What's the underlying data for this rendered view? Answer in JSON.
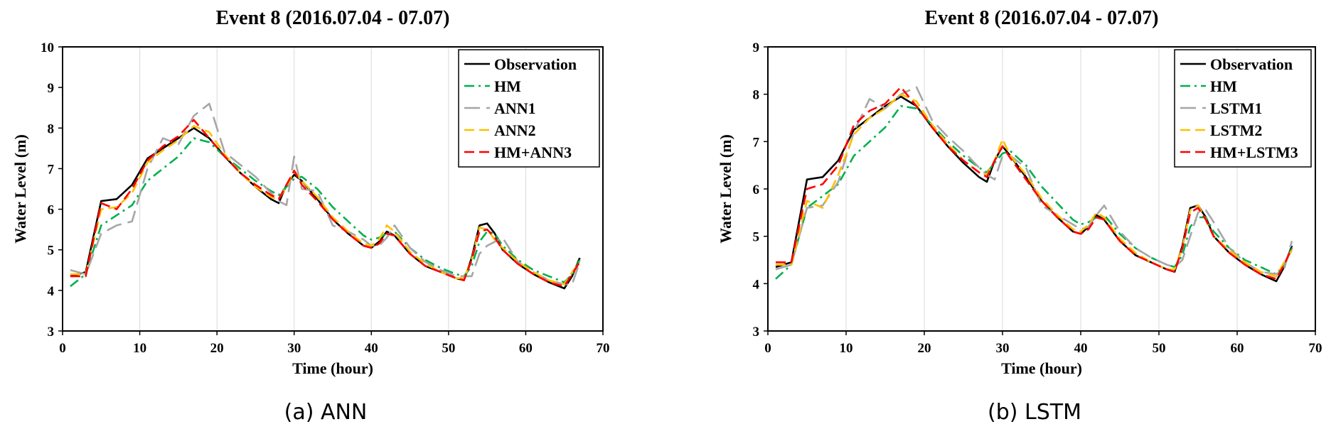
{
  "chart_data": [
    {
      "type": "line",
      "title": "Event 8 (2016.07.04 - 07.07)",
      "xlabel": "Time (hour)",
      "ylabel": "Water Level (m)",
      "xlim": [
        0,
        70
      ],
      "ylim": [
        3,
        10
      ],
      "xticks": [
        "0",
        "10",
        "20",
        "30",
        "40",
        "50",
        "60",
        "70"
      ],
      "yticks": [
        "3",
        "4",
        "5",
        "6",
        "7",
        "8",
        "9",
        "10"
      ],
      "grid": "vertical",
      "legend": "top-right",
      "caption": "(a) ANN",
      "x": [
        1,
        3,
        5,
        7,
        9,
        11,
        13,
        15,
        17,
        19,
        21,
        23,
        25,
        27,
        28,
        29,
        30,
        31,
        33,
        35,
        37,
        39,
        40,
        41,
        42,
        43,
        45,
        47,
        49,
        51,
        52,
        53,
        54,
        55,
        56,
        57,
        59,
        61,
        63,
        65,
        66,
        67
      ],
      "series": [
        {
          "name": "Observation",
          "color": "#000000",
          "dash": "solid",
          "values": [
            4.35,
            4.45,
            6.2,
            6.25,
            6.6,
            7.25,
            7.5,
            7.75,
            8.0,
            7.75,
            7.3,
            6.9,
            6.55,
            6.25,
            6.15,
            6.6,
            6.85,
            6.7,
            6.25,
            5.75,
            5.4,
            5.1,
            5.05,
            5.2,
            5.45,
            5.35,
            4.9,
            4.6,
            4.45,
            4.3,
            4.25,
            4.8,
            5.6,
            5.65,
            5.4,
            5.0,
            4.65,
            4.4,
            4.2,
            4.05,
            4.35,
            4.8
          ]
        },
        {
          "name": "HM",
          "color": "#00b050",
          "dash": "dashdot",
          "values": [
            4.1,
            4.4,
            5.6,
            5.85,
            6.1,
            6.7,
            7.0,
            7.3,
            7.75,
            7.65,
            7.3,
            7.0,
            6.7,
            6.45,
            6.35,
            6.55,
            6.75,
            6.8,
            6.5,
            6.05,
            5.7,
            5.35,
            5.25,
            5.3,
            5.4,
            5.45,
            5.05,
            4.75,
            4.55,
            4.4,
            4.35,
            4.6,
            5.2,
            5.45,
            5.4,
            5.1,
            4.75,
            4.5,
            4.35,
            4.2,
            4.4,
            4.75
          ]
        },
        {
          "name": "ANN1",
          "color": "#a6a6a6",
          "dash": "longdash",
          "values": [
            4.5,
            4.4,
            5.4,
            5.6,
            5.7,
            7.0,
            7.75,
            7.6,
            8.3,
            8.6,
            7.4,
            7.1,
            6.8,
            6.4,
            6.2,
            6.1,
            7.3,
            6.5,
            6.45,
            5.6,
            5.45,
            5.25,
            5.1,
            5.1,
            5.3,
            5.6,
            5.05,
            4.7,
            4.5,
            4.35,
            4.35,
            4.35,
            4.9,
            5.1,
            5.2,
            5.3,
            4.7,
            4.45,
            4.25,
            4.15,
            4.15,
            4.7
          ]
        },
        {
          "name": "ANN2",
          "color": "#ffc000",
          "dash": "dash",
          "values": [
            4.4,
            4.4,
            6.0,
            6.05,
            6.4,
            7.15,
            7.45,
            7.7,
            8.05,
            7.9,
            7.35,
            6.9,
            6.55,
            6.3,
            6.25,
            6.55,
            6.95,
            6.7,
            6.3,
            5.8,
            5.45,
            5.15,
            5.1,
            5.25,
            5.6,
            5.45,
            4.95,
            4.65,
            4.45,
            4.3,
            4.3,
            4.75,
            5.55,
            5.5,
            5.25,
            5.05,
            4.7,
            4.45,
            4.25,
            4.15,
            4.45,
            4.7
          ]
        },
        {
          "name": "HM+ANN3",
          "color": "#ff0000",
          "dash": "dash",
          "values": [
            4.35,
            4.35,
            6.15,
            6.0,
            6.5,
            7.2,
            7.55,
            7.8,
            8.2,
            7.75,
            7.3,
            6.9,
            6.6,
            6.35,
            6.25,
            6.6,
            6.95,
            6.6,
            6.2,
            5.75,
            5.4,
            5.1,
            5.05,
            5.15,
            5.4,
            5.35,
            4.9,
            4.6,
            4.45,
            4.3,
            4.25,
            4.75,
            5.45,
            5.5,
            5.3,
            5.0,
            4.65,
            4.4,
            4.2,
            4.1,
            4.4,
            4.7
          ]
        }
      ]
    },
    {
      "type": "line",
      "title": "Event 8 (2016.07.04 - 07.07)",
      "xlabel": "Time (hour)",
      "ylabel": "Water Level (m)",
      "xlim": [
        0,
        70
      ],
      "ylim": [
        3,
        9
      ],
      "xticks": [
        "0",
        "10",
        "20",
        "30",
        "40",
        "50",
        "60",
        "70"
      ],
      "yticks": [
        "3",
        "4",
        "5",
        "6",
        "7",
        "8",
        "9"
      ],
      "grid": "vertical",
      "legend": "top-right",
      "caption": "(b) LSTM",
      "x": [
        1,
        3,
        5,
        7,
        9,
        11,
        13,
        15,
        17,
        19,
        21,
        23,
        25,
        27,
        28,
        29,
        30,
        31,
        33,
        35,
        37,
        39,
        40,
        41,
        42,
        43,
        45,
        47,
        49,
        51,
        52,
        53,
        54,
        55,
        56,
        57,
        59,
        61,
        63,
        65,
        66,
        67
      ],
      "series": [
        {
          "name": "Observation",
          "color": "#000000",
          "dash": "solid",
          "values": [
            4.35,
            4.45,
            6.2,
            6.25,
            6.6,
            7.25,
            7.5,
            7.75,
            7.95,
            7.75,
            7.3,
            6.9,
            6.55,
            6.25,
            6.15,
            6.6,
            6.9,
            6.7,
            6.25,
            5.75,
            5.4,
            5.1,
            5.05,
            5.2,
            5.45,
            5.35,
            4.9,
            4.6,
            4.45,
            4.3,
            4.25,
            4.8,
            5.6,
            5.65,
            5.4,
            5.0,
            4.65,
            4.4,
            4.2,
            4.05,
            4.35,
            4.8
          ]
        },
        {
          "name": "HM",
          "color": "#00b050",
          "dash": "dashdot",
          "values": [
            4.1,
            4.4,
            5.6,
            5.85,
            6.1,
            6.7,
            7.0,
            7.3,
            7.75,
            7.7,
            7.35,
            7.0,
            6.7,
            6.45,
            6.35,
            6.55,
            6.75,
            6.8,
            6.5,
            6.05,
            5.7,
            5.35,
            5.25,
            5.3,
            5.4,
            5.45,
            5.05,
            4.75,
            4.55,
            4.4,
            4.35,
            4.6,
            5.2,
            5.4,
            5.4,
            5.1,
            4.75,
            4.5,
            4.35,
            4.2,
            4.4,
            4.75
          ]
        },
        {
          "name": "LSTM1",
          "color": "#a6a6a6",
          "dash": "longdash",
          "values": [
            4.3,
            4.4,
            5.6,
            5.65,
            6.15,
            7.2,
            7.9,
            7.7,
            8.0,
            8.15,
            7.45,
            7.1,
            6.8,
            6.45,
            6.3,
            6.2,
            6.7,
            6.7,
            6.45,
            5.65,
            5.45,
            5.25,
            5.15,
            5.2,
            5.45,
            5.65,
            5.1,
            4.75,
            4.55,
            4.4,
            4.35,
            4.5,
            5.0,
            5.5,
            5.55,
            5.3,
            4.75,
            4.45,
            4.25,
            4.2,
            4.3,
            4.9
          ]
        },
        {
          "name": "LSTM2",
          "color": "#ffc000",
          "dash": "dash",
          "values": [
            4.4,
            4.4,
            5.75,
            5.6,
            6.3,
            7.15,
            7.5,
            7.7,
            8.0,
            7.85,
            7.35,
            6.95,
            6.6,
            6.35,
            6.3,
            6.6,
            7.05,
            6.7,
            6.3,
            5.8,
            5.45,
            5.15,
            5.1,
            5.25,
            5.5,
            5.4,
            4.95,
            4.65,
            4.45,
            4.3,
            4.3,
            4.75,
            5.55,
            5.65,
            5.35,
            5.0,
            4.7,
            4.45,
            4.25,
            4.15,
            4.45,
            4.7
          ]
        },
        {
          "name": "HM+LSTM3",
          "color": "#ff0000",
          "dash": "dash",
          "values": [
            4.45,
            4.45,
            6.0,
            6.1,
            6.5,
            7.35,
            7.65,
            7.8,
            8.15,
            7.75,
            7.3,
            6.9,
            6.6,
            6.35,
            6.25,
            6.6,
            6.9,
            6.65,
            6.2,
            5.75,
            5.4,
            5.1,
            5.05,
            5.15,
            5.4,
            5.35,
            4.9,
            4.6,
            4.45,
            4.3,
            4.25,
            4.75,
            5.5,
            5.6,
            5.35,
            5.0,
            4.65,
            4.4,
            4.2,
            4.1,
            4.4,
            4.75
          ]
        }
      ]
    }
  ]
}
